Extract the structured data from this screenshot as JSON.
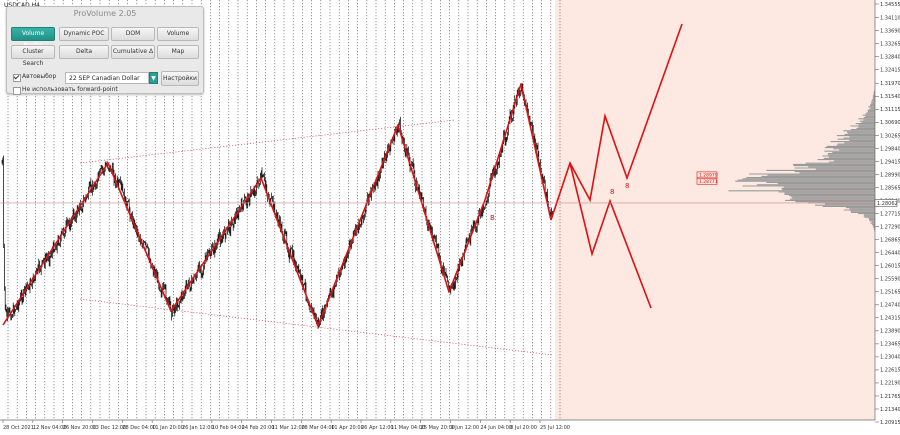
{
  "window": {
    "title": "USDCAD,H4"
  },
  "panel": {
    "title": "ProVolume 2.05",
    "buttons": [
      {
        "label": "Volume Profile",
        "active": true
      },
      {
        "label": "Dynamic POC",
        "active": false
      },
      {
        "label": "DOM",
        "active": false
      },
      {
        "label": "Volume",
        "active": false
      },
      {
        "label": "Cluster Search",
        "active": false
      },
      {
        "label": "Delta",
        "active": false
      },
      {
        "label": "Cumulative Δ",
        "active": false
      },
      {
        "label": "Map",
        "active": false
      }
    ],
    "auto_select_label": "Автовыбор",
    "auto_select_checked": true,
    "instrument_value": "22 SEP Canadian Dollar",
    "settings_label": "Настройки",
    "forward_point_label": "Не использовать forward-point",
    "forward_point_checked": false
  },
  "colors": {
    "accent": "#2aa095",
    "pattern": "#dd1111",
    "candles": "#000000",
    "profile": "#9a9a9a",
    "shade": "#fde9e1"
  },
  "chart_data": {
    "type": "line",
    "symbol": "USDCAD,H4",
    "price_axis": [
      "1.34555",
      "1.34110",
      "1.33690",
      "1.33265",
      "1.32840",
      "1.32415",
      "1.31970",
      "1.31540",
      "1.31115",
      "1.30690",
      "1.30265",
      "1.29840",
      "1.29415",
      "1.28990",
      "1.28565",
      "1.28140",
      "1.27715",
      "1.27290",
      "1.26865",
      "1.26440",
      "1.26015",
      "1.25590",
      "1.25165",
      "1.24740",
      "1.24315",
      "1.23890",
      "1.23465",
      "1.23040",
      "1.22615",
      "1.22190",
      "1.21765",
      "1.21340",
      "1.20915"
    ],
    "time_axis": [
      "28 Oct 2021",
      "12 Nov 04:00",
      "26 Nov 20:00",
      "13 Dec 12:00",
      "28 Dec 04:00",
      "11 Jan 20:00",
      "26 Jan 12:00",
      "10 Feb 04:00",
      "24 Feb 20:00",
      "11 Mar 12:00",
      "28 Mar 04:00",
      "11 Apr 20:00",
      "26 Apr 12:00",
      "11 May 04:00",
      "25 May 20:00",
      "9 Jun 12:00",
      "24 Jun 04:00",
      "8 Jul 20:00",
      "25 Jul 12:00"
    ],
    "current_price": "1.28062",
    "profile_labels": [
      "1.28979",
      "1.28771"
    ],
    "wave_labels": [
      "B",
      "8",
      "8"
    ]
  }
}
